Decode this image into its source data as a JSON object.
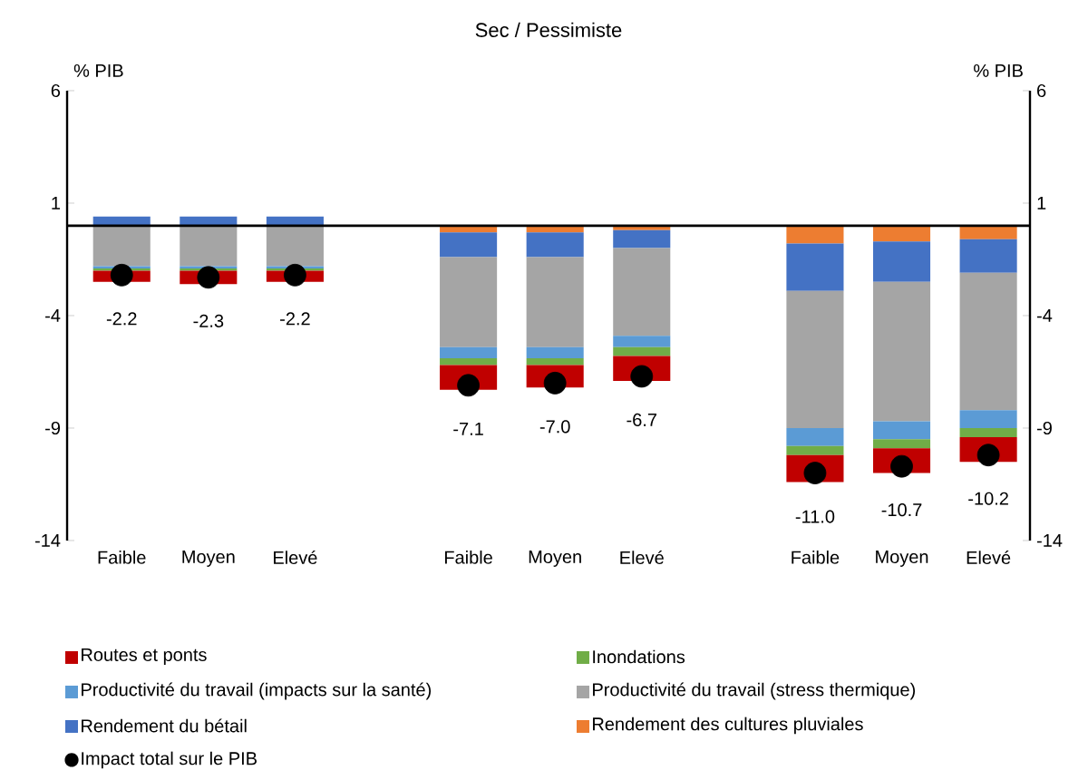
{
  "chart_data": {
    "type": "bar",
    "stacked": true,
    "title": "Sec / Pessimiste",
    "ylabel": "% PIB",
    "y2label": "% PIB",
    "categories": [
      "Faible",
      "Moyen",
      "Elevé",
      null,
      "Faible",
      "Moyen",
      "Elevé",
      null,
      "Faible",
      "Moyen",
      "Elevé"
    ],
    "ylim": [
      -14,
      6
    ],
    "yticks": [
      -14,
      -9,
      -4,
      1,
      6
    ],
    "y2lim": [
      -14,
      6
    ],
    "y2ticks": [
      -14,
      -9,
      -4,
      1,
      6
    ],
    "grid": false,
    "legend": "bottom",
    "series": [
      {
        "name": "Rendement des cultures pluviales",
        "color": "#ed7d31",
        "values": [
          0,
          0,
          0,
          null,
          -0.3,
          -0.3,
          -0.2,
          null,
          -0.8,
          -0.7,
          -0.6
        ]
      },
      {
        "name": "Rendement du bétail",
        "color": "#4472c4",
        "values": [
          0.4,
          0.4,
          0.4,
          null,
          -1.1,
          -1.1,
          -0.8,
          null,
          -2.1,
          -1.8,
          -1.5
        ]
      },
      {
        "name": "Productivité du travail (stress thermique)",
        "color": "#a5a5a5",
        "values": [
          -1.8,
          -1.8,
          -1.8,
          null,
          -4.0,
          -4.0,
          -3.9,
          null,
          -6.1,
          -6.2,
          -6.1
        ]
      },
      {
        "name": "Productivité du travail (impacts sur la santé)",
        "color": "#5b9bd5",
        "values": [
          -0.1,
          -0.1,
          -0.1,
          null,
          -0.5,
          -0.5,
          -0.5,
          null,
          -0.8,
          -0.8,
          -0.8
        ]
      },
      {
        "name": "Inondations",
        "color": "#70ad47",
        "values": [
          -0.1,
          -0.1,
          -0.1,
          null,
          -0.3,
          -0.3,
          -0.4,
          null,
          -0.4,
          -0.4,
          -0.4
        ]
      },
      {
        "name": "Routes et ponts",
        "color": "#c00000",
        "values": [
          -0.5,
          -0.6,
          -0.5,
          null,
          -1.1,
          -1.0,
          -1.1,
          null,
          -1.2,
          -1.1,
          -1.1
        ]
      },
      {
        "name": "Impact total sur le PIB",
        "type": "scatter",
        "marker": "circle",
        "color": "#000000",
        "values": [
          -2.2,
          -2.3,
          -2.2,
          null,
          -7.1,
          -7.0,
          -6.7,
          null,
          -11.0,
          -10.7,
          -10.2
        ],
        "value_labels": [
          "-2.2",
          "-2.3",
          "-2.2",
          null,
          "-7.1",
          "-7.0",
          "-6.7",
          null,
          "-11.0",
          "-10.7",
          "-10.2"
        ]
      }
    ]
  }
}
